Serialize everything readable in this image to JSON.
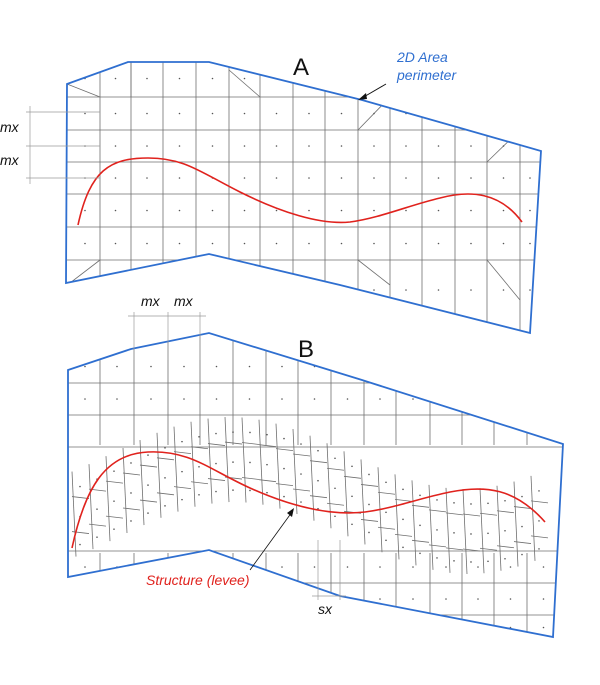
{
  "colors": {
    "perimeter": "#2f6fd0",
    "structure": "#e0221d",
    "grid": "#6f6f6f",
    "text": "#111111"
  },
  "diagram_a": {
    "label": "A",
    "perimeter_label_line1": "2D Area",
    "perimeter_label_line2": "perimeter",
    "mx_label_1": "mx",
    "mx_label_2": "mx"
  },
  "diagram_b": {
    "label": "B",
    "mx_label_1": "mx",
    "mx_label_2": "mx",
    "structure_label": "Structure (levee)",
    "sx_label": "sx"
  }
}
